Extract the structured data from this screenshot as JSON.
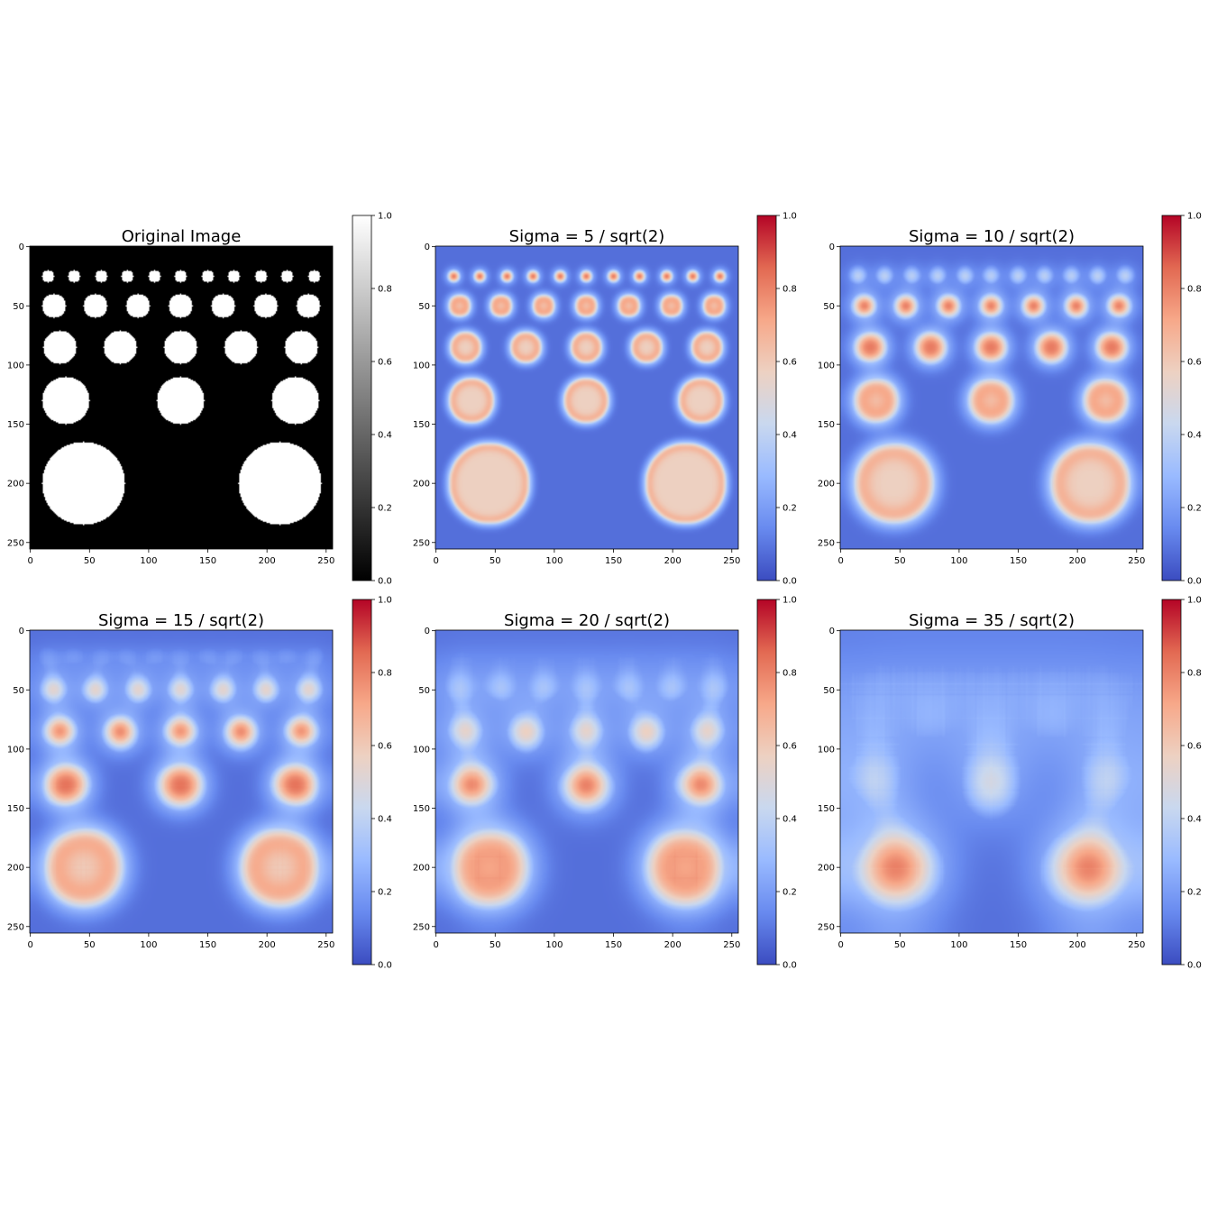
{
  "figure": {
    "panels": [
      {
        "title": "Original Image",
        "cmap": "gray",
        "sigma": 0
      },
      {
        "title": "Sigma = 5 / sqrt(2)",
        "cmap": "coolwarm",
        "sigma": 3.5355
      },
      {
        "title": "Sigma = 10 / sqrt(2)",
        "cmap": "coolwarm",
        "sigma": 7.0711
      },
      {
        "title": "Sigma = 15 / sqrt(2)",
        "cmap": "coolwarm",
        "sigma": 10.6066
      },
      {
        "title": "Sigma = 20 / sqrt(2)",
        "cmap": "coolwarm",
        "sigma": 14.1421
      },
      {
        "title": "Sigma = 35 / sqrt(2)",
        "cmap": "coolwarm",
        "sigma": 24.7487
      }
    ]
  },
  "chart_data": {
    "type": "heatmap",
    "image_size": [
      256,
      256
    ],
    "xlim": [
      0,
      256
    ],
    "ylim": [
      256,
      0
    ],
    "x_ticks": [
      "0",
      "50",
      "100",
      "150",
      "200",
      "250"
    ],
    "y_ticks": [
      "0",
      "50",
      "100",
      "150",
      "200",
      "250"
    ],
    "colorbar_ticks": [
      "0.0",
      "0.2",
      "0.4",
      "0.6",
      "0.8",
      "1.0"
    ],
    "colorbar_range": [
      0,
      1
    ],
    "blobs": [
      {
        "row_y": 25,
        "radius": 5,
        "x": [
          15,
          37,
          60,
          82,
          105,
          127,
          150,
          172,
          195,
          217,
          240
        ]
      },
      {
        "row_y": 50,
        "radius": 10,
        "x": [
          20,
          55,
          91,
          127,
          163,
          199,
          235
        ]
      },
      {
        "row_y": 85,
        "radius": 14,
        "x": [
          25,
          76,
          127,
          178,
          229
        ]
      },
      {
        "row_y": 130,
        "radius": 20,
        "x": [
          30,
          127,
          224
        ]
      },
      {
        "row_y": 200,
        "radius": 35,
        "x": [
          45,
          211
        ]
      }
    ],
    "colors": {
      "coolwarm": [
        "#3b4cc0",
        "#688aef",
        "#99baff",
        "#c9d8ef",
        "#edd1c2",
        "#f7a889",
        "#e26952",
        "#b40426"
      ],
      "gray": [
        "#000000",
        "#ffffff"
      ]
    }
  }
}
